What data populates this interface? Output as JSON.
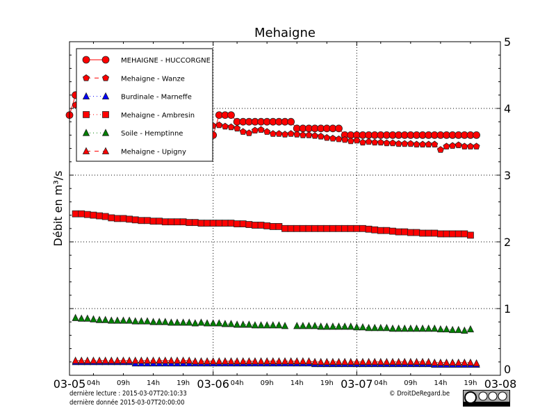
{
  "chart_data": {
    "type": "line",
    "title": "Mehaigne",
    "ylabel": "Débit en m³/s",
    "xlabel": "",
    "xlim": [
      "2015-03-05T00:00",
      "2015-03-08T00:00"
    ],
    "ylim": [
      0,
      5
    ],
    "grid": true,
    "legend_position": "top-left",
    "x_interval": "1h",
    "x_major_ticks": [
      "03-05",
      "03-06",
      "03-07",
      "03-08"
    ],
    "x_minor_ticks": [
      "04h",
      "09h",
      "14h",
      "19h"
    ],
    "y_ticks": [
      "0",
      "1",
      "2",
      "3",
      "4",
      "5"
    ],
    "series": [
      {
        "name": "MEHAIGNE - HUCCORGNE",
        "color": "#ff0000",
        "line": "solid",
        "marker": "circle",
        "x_start": "2015-03-05T00:00",
        "values": [
          3.9,
          4.2,
          null,
          null,
          null,
          null,
          null,
          null,
          null,
          null,
          null,
          null,
          null,
          null,
          null,
          null,
          null,
          null,
          null,
          null,
          null,
          null,
          null,
          null,
          3.6,
          3.9,
          3.9,
          3.9,
          3.8,
          3.8,
          3.8,
          3.8,
          3.8,
          3.8,
          3.8,
          3.8,
          3.8,
          3.8,
          3.7,
          3.7,
          3.7,
          3.7,
          3.7,
          3.7,
          3.7,
          3.7,
          3.6,
          3.6,
          3.6,
          3.6,
          3.6,
          3.6,
          3.6,
          3.6,
          3.6,
          3.6,
          3.6,
          3.6,
          3.6,
          3.6,
          3.6,
          3.6,
          3.6,
          3.6,
          3.6,
          3.6,
          3.6,
          3.6,
          3.6
        ]
      },
      {
        "name": "Mehaigne - Wanze",
        "color": "#ff0000",
        "line": "dashed",
        "marker": "pentagon",
        "x_start": "2015-03-05T01:00",
        "values": [
          4.05,
          null,
          null,
          null,
          null,
          null,
          null,
          null,
          null,
          null,
          null,
          null,
          null,
          null,
          null,
          null,
          null,
          null,
          null,
          null,
          null,
          null,
          null,
          3.74,
          3.75,
          3.73,
          3.72,
          3.7,
          3.65,
          3.63,
          3.67,
          3.68,
          3.65,
          3.62,
          3.62,
          3.61,
          3.62,
          3.61,
          3.6,
          3.6,
          3.59,
          3.58,
          3.56,
          3.55,
          3.54,
          3.53,
          3.51,
          3.52,
          3.49,
          3.5,
          3.49,
          3.49,
          3.48,
          3.48,
          3.47,
          3.47,
          3.47,
          3.46,
          3.46,
          3.46,
          3.46,
          3.38,
          3.43,
          3.44,
          3.45,
          3.43,
          3.43,
          3.43
        ]
      },
      {
        "name": "Burdinale - Marneffe",
        "color": "#0000ff",
        "line": "dotted",
        "marker": "triangle",
        "x_start": "2015-03-05T01:00",
        "values": [
          0.2,
          0.2,
          0.2,
          0.2,
          0.2,
          0.2,
          0.2,
          0.2,
          0.2,
          0.2,
          0.18,
          0.18,
          0.18,
          0.18,
          0.18,
          0.18,
          0.18,
          0.18,
          0.18,
          0.18,
          0.18,
          0.18,
          0.18,
          0.18,
          0.18,
          0.18,
          0.18,
          0.18,
          0.18,
          0.18,
          0.18,
          0.18,
          0.18,
          0.18,
          0.18,
          0.18,
          0.18,
          0.18,
          0.18,
          0.18,
          0.17,
          0.17,
          0.17,
          0.17,
          0.17,
          0.17,
          0.17,
          0.17,
          0.17,
          0.17,
          0.17,
          0.17,
          0.17,
          0.17,
          0.17,
          0.17,
          0.17,
          0.17,
          0.17,
          0.17,
          0.16,
          0.16,
          0.16,
          0.16,
          0.16,
          0.16,
          0.16,
          0.16
        ]
      },
      {
        "name": "Mehaigne - Ambresin",
        "color": "#ff0000",
        "line": "dotted",
        "marker": "square",
        "x_start": "2015-03-05T01:00",
        "values": [
          2.42,
          2.42,
          2.41,
          2.4,
          2.39,
          2.38,
          2.36,
          2.35,
          2.35,
          2.34,
          2.33,
          2.32,
          2.32,
          2.31,
          2.31,
          2.3,
          2.3,
          2.3,
          2.3,
          2.29,
          2.29,
          2.28,
          2.28,
          2.28,
          2.28,
          2.28,
          2.28,
          2.27,
          2.27,
          2.26,
          2.25,
          2.25,
          2.24,
          2.23,
          2.23,
          2.2,
          2.2,
          2.2,
          2.2,
          2.2,
          2.2,
          2.2,
          2.2,
          2.2,
          2.2,
          2.2,
          2.2,
          2.2,
          2.2,
          2.19,
          2.18,
          2.17,
          2.17,
          2.16,
          2.15,
          2.15,
          2.14,
          2.14,
          2.13,
          2.13,
          2.13,
          2.12,
          2.12,
          2.12,
          2.12,
          2.12,
          2.1
        ]
      },
      {
        "name": "Soile - Hemptinne",
        "color": "#008000",
        "line": "dotted",
        "marker": "triangle",
        "x_start": "2015-03-05T01:00",
        "values": [
          0.86,
          0.85,
          0.85,
          0.84,
          0.83,
          0.83,
          0.82,
          0.82,
          0.82,
          0.82,
          0.81,
          0.81,
          0.81,
          0.8,
          0.8,
          0.8,
          0.79,
          0.79,
          0.79,
          0.79,
          0.78,
          0.79,
          0.78,
          0.78,
          0.78,
          0.77,
          0.77,
          0.76,
          0.76,
          0.76,
          0.75,
          0.75,
          0.75,
          0.75,
          0.75,
          0.74,
          null,
          0.74,
          0.74,
          0.74,
          0.74,
          0.73,
          0.73,
          0.73,
          0.73,
          0.73,
          0.73,
          0.72,
          0.72,
          0.71,
          0.71,
          0.71,
          0.71,
          0.7,
          0.7,
          0.7,
          0.7,
          0.7,
          0.7,
          0.7,
          0.7,
          0.69,
          0.69,
          0.68,
          0.68,
          0.67,
          0.69
        ]
      },
      {
        "name": "Mehaigne - Upigny",
        "color": "#ff0000",
        "line": "dashed",
        "marker": "triangle",
        "x_start": "2015-03-05T01:00",
        "values": [
          0.22,
          0.22,
          0.22,
          0.22,
          0.22,
          0.22,
          0.22,
          0.22,
          0.22,
          0.22,
          0.22,
          0.22,
          0.22,
          0.22,
          0.22,
          0.22,
          0.22,
          0.22,
          0.22,
          0.22,
          0.21,
          0.21,
          0.21,
          0.21,
          0.21,
          0.21,
          0.21,
          0.21,
          0.21,
          0.21,
          0.21,
          0.21,
          0.21,
          0.21,
          0.21,
          0.21,
          0.21,
          0.21,
          0.21,
          0.21,
          0.2,
          0.2,
          0.2,
          0.2,
          0.2,
          0.2,
          0.2,
          0.2,
          0.2,
          0.2,
          0.2,
          0.2,
          0.2,
          0.2,
          0.2,
          0.2,
          0.2,
          0.2,
          0.2,
          0.2,
          0.19,
          0.19,
          0.19,
          0.19,
          0.19,
          0.19,
          0.19,
          0.18
        ]
      }
    ]
  },
  "footer": {
    "last_read": "dernière lecture : 2015-03-07T20:10:33",
    "last_data": "dernière donnée  2015-03-07T20:00:00",
    "copyright": "© DroitDeRegard.be",
    "license_badge": "cc BY NC SA"
  }
}
